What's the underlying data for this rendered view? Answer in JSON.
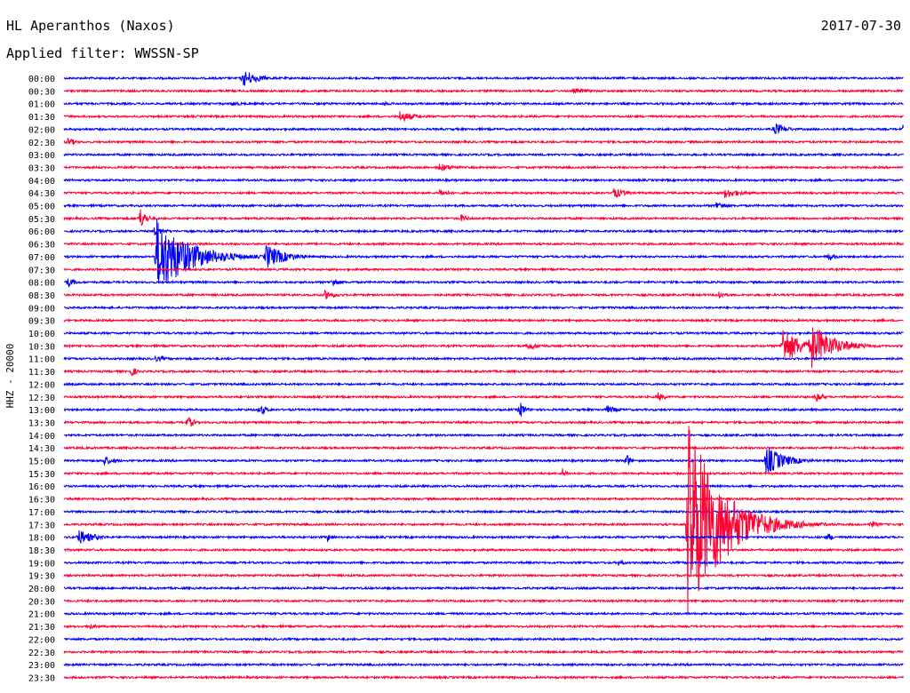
{
  "header": {
    "station": "HL Aperanthos (Naxos)",
    "date": "2017-07-30",
    "filter": "Applied filter: WWSSN-SP",
    "channel": "HHZ - 20000"
  },
  "colors": {
    "even_trace": "#0000ff",
    "odd_trace": "#ff0033"
  },
  "chart_data": {
    "type": "line",
    "title": "HL Aperanthos (Naxos)",
    "date": "2017-07-30",
    "filter": "WWSSN-SP",
    "ylabel": "HHZ - 20000",
    "row_labels": [
      "00:00",
      "00:30",
      "01:00",
      "01:30",
      "02:00",
      "02:30",
      "03:00",
      "03:30",
      "04:00",
      "04:30",
      "05:00",
      "05:30",
      "06:00",
      "06:30",
      "07:00",
      "07:30",
      "08:00",
      "08:30",
      "09:00",
      "09:30",
      "10:00",
      "10:30",
      "11:00",
      "11:30",
      "12:00",
      "12:30",
      "13:00",
      "13:30",
      "14:00",
      "14:30",
      "15:00",
      "15:30",
      "16:00",
      "16:30",
      "17:00",
      "17:30",
      "18:00",
      "18:30",
      "19:00",
      "19:30",
      "20:00",
      "20:30",
      "21:00",
      "21:30",
      "22:00",
      "22:30",
      "23:00",
      "23:30"
    ],
    "x_unit": "minutes within row",
    "x_range": [
      0,
      30
    ],
    "events": [
      {
        "row": "00:00",
        "minute": 6.4,
        "amplitude": 10,
        "duration": 1.2
      },
      {
        "row": "00:30",
        "minute": 18.2,
        "amplitude": 3,
        "duration": 2.0
      },
      {
        "row": "01:00",
        "minute": 6.0,
        "amplitude": 3,
        "duration": 1.0
      },
      {
        "row": "01:00",
        "minute": 11.4,
        "amplitude": 3,
        "duration": 0.8
      },
      {
        "row": "01:30",
        "minute": 12.0,
        "amplitude": 7,
        "duration": 1.2
      },
      {
        "row": "02:00",
        "minute": 25.4,
        "amplitude": 8,
        "duration": 0.9
      },
      {
        "row": "02:00",
        "minute": 30.0,
        "amplitude": 5,
        "duration": 0.6
      },
      {
        "row": "02:30",
        "minute": 0.1,
        "amplitude": 5,
        "duration": 0.8
      },
      {
        "row": "03:30",
        "minute": 13.4,
        "amplitude": 5,
        "duration": 1.2
      },
      {
        "row": "04:30",
        "minute": 13.4,
        "amplitude": 5,
        "duration": 0.8
      },
      {
        "row": "04:30",
        "minute": 19.6,
        "amplitude": 7,
        "duration": 1.0
      },
      {
        "row": "04:30",
        "minute": 23.6,
        "amplitude": 6,
        "duration": 1.4
      },
      {
        "row": "05:00",
        "minute": 23.3,
        "amplitude": 6,
        "duration": 0.8
      },
      {
        "row": "05:30",
        "minute": 2.7,
        "amplitude": 13,
        "duration": 0.5
      },
      {
        "row": "05:30",
        "minute": 14.2,
        "amplitude": 5,
        "duration": 0.6
      },
      {
        "row": "06:00",
        "minute": 3.2,
        "amplitude": 5,
        "duration": 1.0
      },
      {
        "row": "07:00",
        "minute": 3.3,
        "amplitude": 45,
        "duration": 2.5
      },
      {
        "row": "07:00",
        "minute": 7.2,
        "amplitude": 15,
        "duration": 1.5
      },
      {
        "row": "07:00",
        "minute": 27.3,
        "amplitude": 6,
        "duration": 0.6
      },
      {
        "row": "08:00",
        "minute": 0.1,
        "amplitude": 7,
        "duration": 0.6
      },
      {
        "row": "08:00",
        "minute": 9.6,
        "amplitude": 7,
        "duration": 0.5
      },
      {
        "row": "08:30",
        "minute": 9.3,
        "amplitude": 6,
        "duration": 0.9
      },
      {
        "row": "08:30",
        "minute": 23.4,
        "amplitude": 6,
        "duration": 0.5
      },
      {
        "row": "10:30",
        "minute": 25.7,
        "amplitude": 22,
        "duration": 1.4
      },
      {
        "row": "10:30",
        "minute": 26.7,
        "amplitude": 26,
        "duration": 1.8
      },
      {
        "row": "10:30",
        "minute": 16.6,
        "amplitude": 5,
        "duration": 1.0
      },
      {
        "row": "11:00",
        "minute": 3.2,
        "amplitude": 4,
        "duration": 1.0
      },
      {
        "row": "11:30",
        "minute": 2.4,
        "amplitude": 7,
        "duration": 0.4
      },
      {
        "row": "12:30",
        "minute": 21.2,
        "amplitude": 6,
        "duration": 0.6
      },
      {
        "row": "12:30",
        "minute": 26.9,
        "amplitude": 7,
        "duration": 0.5
      },
      {
        "row": "13:00",
        "minute": 7.0,
        "amplitude": 8,
        "duration": 0.5
      },
      {
        "row": "13:00",
        "minute": 16.3,
        "amplitude": 10,
        "duration": 0.4
      },
      {
        "row": "13:00",
        "minute": 19.4,
        "amplitude": 5,
        "duration": 0.9
      },
      {
        "row": "13:30",
        "minute": 4.4,
        "amplitude": 8,
        "duration": 0.5
      },
      {
        "row": "15:00",
        "minute": 1.4,
        "amplitude": 6,
        "duration": 0.9
      },
      {
        "row": "15:00",
        "minute": 20.1,
        "amplitude": 10,
        "duration": 0.3
      },
      {
        "row": "15:00",
        "minute": 25.1,
        "amplitude": 17,
        "duration": 1.5
      },
      {
        "row": "15:30",
        "minute": 17.8,
        "amplitude": 7,
        "duration": 0.4
      },
      {
        "row": "17:30",
        "minute": 22.3,
        "amplitude": 120,
        "duration": 2.6
      },
      {
        "row": "17:30",
        "minute": 28.8,
        "amplitude": 4,
        "duration": 1.0
      },
      {
        "row": "18:00",
        "minute": 0.5,
        "amplitude": 9,
        "duration": 1.3
      },
      {
        "row": "18:00",
        "minute": 9.4,
        "amplitude": 5,
        "duration": 0.5
      },
      {
        "row": "18:00",
        "minute": 27.3,
        "amplitude": 6,
        "duration": 0.4
      },
      {
        "row": "19:00",
        "minute": 19.8,
        "amplitude": 4,
        "duration": 0.7
      },
      {
        "row": "21:30",
        "minute": 0.8,
        "amplitude": 4,
        "duration": 0.8
      }
    ]
  }
}
